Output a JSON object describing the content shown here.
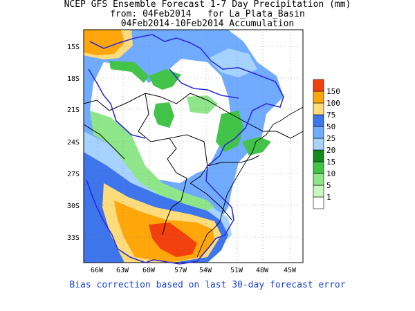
{
  "header": {
    "line1": "NCEP GFS Ensemble Forecast 1-7 Day Precipitation (mm)",
    "line2": "from: 04Feb2014   for La_Plata_Basin",
    "line3": "04Feb2014-10Feb2014 Accumulation"
  },
  "footer": "Bias correction based on last 30-day forecast error",
  "map": {
    "lat_labels": [
      "15S",
      "18S",
      "21S",
      "24S",
      "27S",
      "30S",
      "33S"
    ],
    "lon_labels": [
      "66W",
      "63W",
      "60W",
      "57W",
      "54W",
      "51W",
      "48W",
      "45W"
    ]
  },
  "legend": {
    "colors": [
      "#ffffff",
      "#c9f7c0",
      "#8fe68a",
      "#41c447",
      "#128a1e",
      "#a6d2ff",
      "#71abff",
      "#3e75ec",
      "#ffdc7b",
      "#ffa60b",
      "#f3400f"
    ],
    "labels": [
      "1",
      "5",
      "10",
      "15",
      "20",
      "25",
      "50",
      "75",
      "100",
      "150"
    ]
  },
  "colors": {
    "boundary": "#2b2bd6",
    "footer_text": "#1a3fd0"
  }
}
